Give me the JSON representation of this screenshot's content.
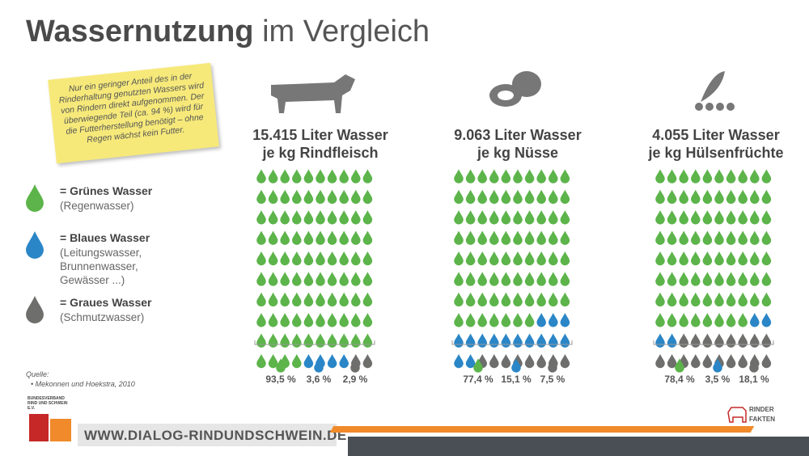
{
  "header": {
    "title_bold": "Wassernutzung",
    "title_light": "im Vergleich"
  },
  "note": {
    "text": "Nur ein geringer Anteil des in der Rinderhaltung genutzten Wassers wird von Rindern direkt aufgenommen. Der überwiegende Teil (ca. 94 %) wird für die Futterherstellung benötigt – ohne Regen wächst kein Futter."
  },
  "legend": {
    "items": [
      {
        "title": "= Grünes Wasser",
        "subtitle": "(Regenwasser)",
        "color": "#5cb44a"
      },
      {
        "title": "= Blaues Wasser",
        "subtitle": "(Leitungswasser,\nBrunnenwasser,\nGewässer ...)",
        "color": "#2a86c7"
      },
      {
        "title": "= Graues Wasser",
        "subtitle": "(Schmutzwasser)",
        "color": "#6e6e6c"
      }
    ]
  },
  "colors": {
    "green": "#5cb44a",
    "blue": "#2a86c7",
    "gray": "#6e6e6c",
    "icon": "#777777"
  },
  "source": {
    "title": "Quelle:",
    "item": "Mekonnen und Hoekstra, 2010"
  },
  "footer": {
    "url": "WWW.DIALOG-RINDUNDSCHWEIN.DE",
    "logo_left": "BUNDESVERBAND RIND UND SCHWEIN E.V.",
    "logo_right_1": "RINDER",
    "logo_right_2": "FAKTEN"
  },
  "chart_data": [
    {
      "type": "pictogram",
      "icon": "cow-icon",
      "title_line1": "15.415 Liter Wasser",
      "title_line2": "je kg Rindfleisch",
      "categories": [
        "Grünes Wasser",
        "Blaues Wasser",
        "Graues Wasser"
      ],
      "values": [
        93.5,
        3.6,
        2.9
      ],
      "labels": [
        "93,5 %",
        "3,6 %",
        "2,9 %"
      ],
      "grid": {
        "cols": 10,
        "rows": 10
      },
      "drop_counts": {
        "green": 94,
        "blue": 4,
        "gray": 2
      }
    },
    {
      "type": "pictogram",
      "icon": "nut-icon",
      "title_line1": "9.063 Liter Wasser",
      "title_line2": "je kg Nüsse",
      "categories": [
        "Grünes Wasser",
        "Blaues Wasser",
        "Graues Wasser"
      ],
      "values": [
        77.4,
        15.1,
        7.5
      ],
      "labels": [
        "77,4 %",
        "15,1 %",
        "7,5 %"
      ],
      "grid": {
        "cols": 10,
        "rows": 10
      },
      "drop_counts": {
        "green": 77,
        "blue": 15,
        "gray": 8
      }
    },
    {
      "type": "pictogram",
      "icon": "pea-pod-icon",
      "title_line1": "4.055 Liter Wasser",
      "title_line2": "je kg Hülsenfrüchte",
      "categories": [
        "Grünes Wasser",
        "Blaues Wasser",
        "Graues Wasser"
      ],
      "values": [
        78.4,
        3.5,
        18.1
      ],
      "labels": [
        "78,4 %",
        "3,5 %",
        "18,1 %"
      ],
      "grid": {
        "cols": 10,
        "rows": 10
      },
      "drop_counts": {
        "green": 78,
        "blue": 4,
        "gray": 18
      }
    }
  ]
}
